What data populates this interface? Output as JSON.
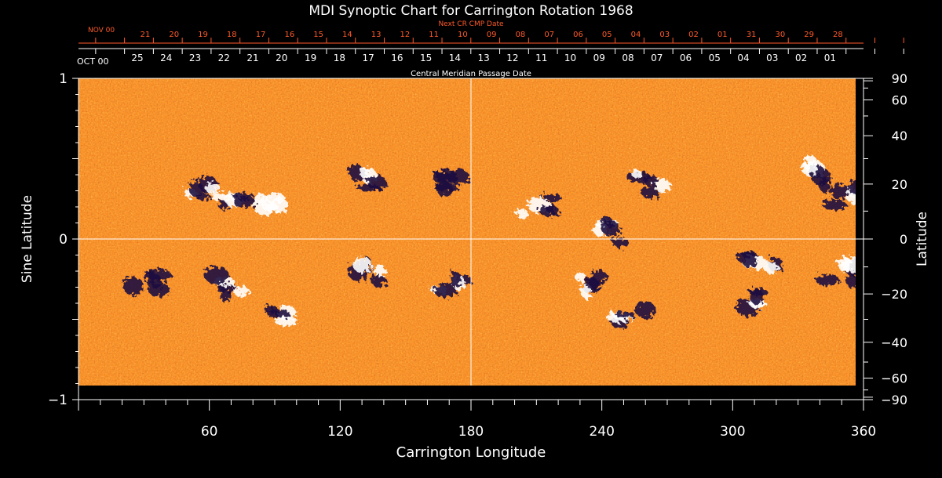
{
  "chart_data": {
    "type": "heatmap",
    "title": "MDI Synoptic Chart for Carrington Rotation 1968",
    "xlabel": "Carrington Longitude",
    "ylabel_left": "Sine Latitude",
    "ylabel_right": "Latitude",
    "xlim": [
      0,
      360
    ],
    "x_ticks": [
      "60",
      "120",
      "180",
      "240",
      "300",
      "360"
    ],
    "ylim_sine": [
      -1,
      1
    ],
    "y_left_ticks": [
      "1",
      "0",
      "−1"
    ],
    "y_right_ticks": [
      90,
      60,
      40,
      20,
      0,
      -20,
      -40,
      -60,
      -90
    ],
    "y_right_tick_labels": [
      "90",
      "60",
      "40",
      "20",
      "0",
      "−20",
      "−40",
      "−60",
      "−90"
    ],
    "top_axis_current": {
      "month_label": "OCT 00",
      "dates": [
        "25",
        "24",
        "23",
        "22",
        "21",
        "20",
        "19",
        "18",
        "17",
        "16",
        "15",
        "14",
        "13",
        "12",
        "11",
        "10",
        "09",
        "08",
        "07",
        "06",
        "05",
        "04",
        "03",
        "02",
        "01"
      ]
    },
    "top_axis_next": {
      "label": "Next CR CMP Date",
      "month_label": "NOV 00",
      "dates": [
        "21",
        "20",
        "19",
        "18",
        "17",
        "16",
        "15",
        "14",
        "13",
        "12",
        "11",
        "10",
        "09",
        "08",
        "07",
        "06",
        "05",
        "04",
        "03",
        "02",
        "01",
        "31",
        "30",
        "29",
        "28"
      ]
    },
    "top_axis_caption": "Central Meridian Passage Date",
    "colormap": [
      "#1c1040",
      "#550f0f",
      "#c2280a",
      "#f06a10",
      "#ff9a2a",
      "#ffd47a",
      "#ffffff"
    ],
    "active_regions": [
      {
        "lon": 55,
        "sinlat": 0.32,
        "polarity": "mixed"
      },
      {
        "lon": 72,
        "sinlat": 0.25,
        "polarity": "mixed"
      },
      {
        "lon": 88,
        "sinlat": 0.25,
        "polarity": "positive"
      },
      {
        "lon": 130,
        "sinlat": 0.35,
        "polarity": "mixed"
      },
      {
        "lon": 167,
        "sinlat": 0.33,
        "polarity": "negative"
      },
      {
        "lon": 70,
        "sinlat": -0.28,
        "polarity": "mixed"
      },
      {
        "lon": 135,
        "sinlat": -0.22,
        "polarity": "mixed"
      },
      {
        "lon": 170,
        "sinlat": -0.27,
        "polarity": "mixed"
      },
      {
        "lon": 93,
        "sinlat": -0.5,
        "polarity": "mixed"
      },
      {
        "lon": 210,
        "sinlat": 0.22,
        "polarity": "mixed"
      },
      {
        "lon": 245,
        "sinlat": 0.04,
        "polarity": "mixed"
      },
      {
        "lon": 263,
        "sinlat": 0.35,
        "polarity": "mixed"
      },
      {
        "lon": 335,
        "sinlat": 0.4,
        "polarity": "mixed"
      },
      {
        "lon": 352,
        "sinlat": 0.25,
        "polarity": "mixed"
      },
      {
        "lon": 237,
        "sinlat": -0.3,
        "polarity": "mixed"
      },
      {
        "lon": 254,
        "sinlat": -0.47,
        "polarity": "mixed"
      },
      {
        "lon": 313,
        "sinlat": -0.18,
        "polarity": "mixed"
      },
      {
        "lon": 310,
        "sinlat": -0.38,
        "polarity": "mixed"
      },
      {
        "lon": 350,
        "sinlat": -0.22,
        "polarity": "mixed"
      },
      {
        "lon": 32,
        "sinlat": -0.25,
        "polarity": "negative"
      }
    ]
  },
  "colors": {
    "background": "#000000",
    "axis": "#ffffff",
    "next_rotation_axis": "#ff5a2a"
  }
}
